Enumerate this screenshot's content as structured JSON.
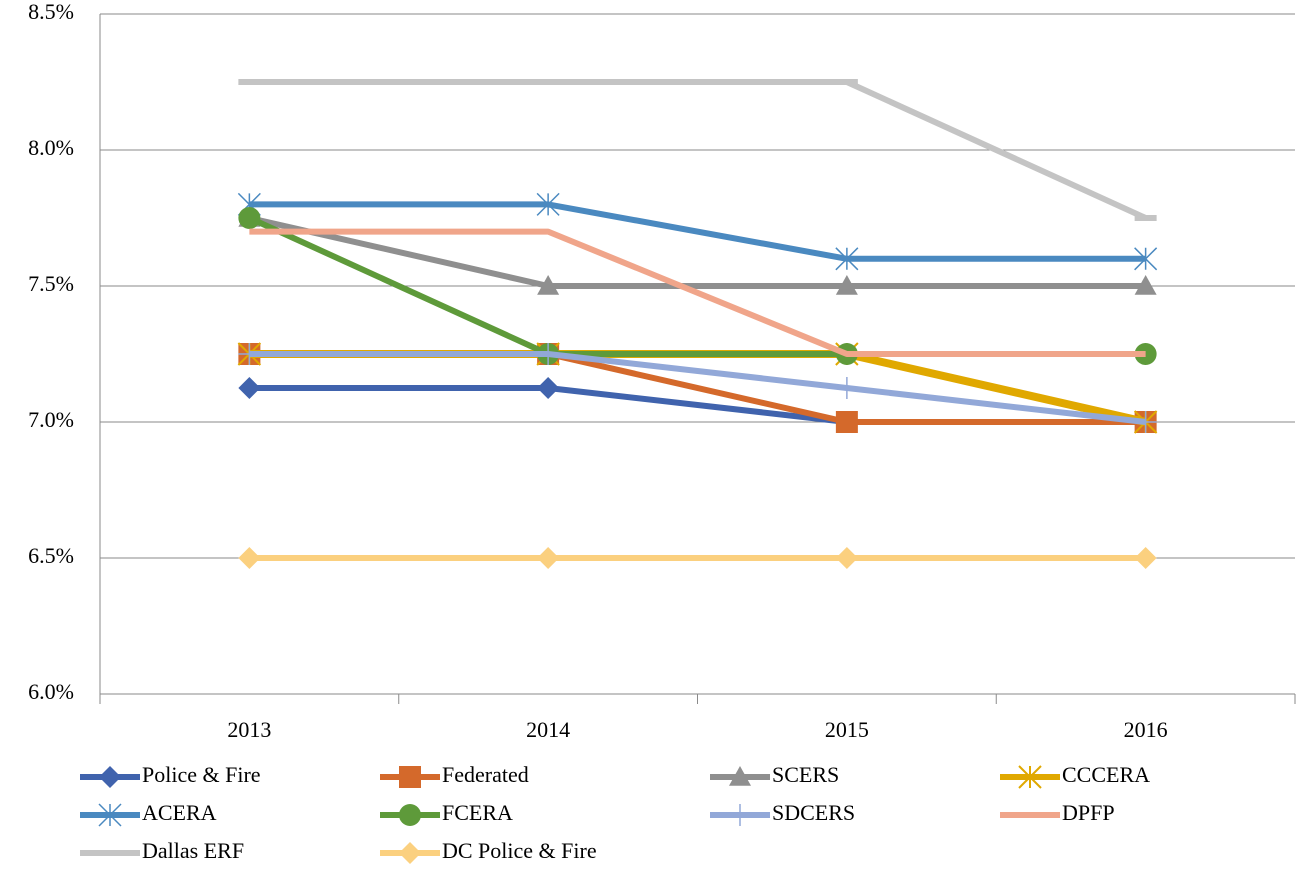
{
  "chart_data": {
    "type": "line",
    "categories": [
      "2013",
      "2014",
      "2015",
      "2016"
    ],
    "ylim": [
      6.0,
      8.5
    ],
    "yticks": [
      {
        "value": 6.0,
        "label": "6.0%"
      },
      {
        "value": 6.5,
        "label": "6.5%"
      },
      {
        "value": 7.0,
        "label": "7.0%"
      },
      {
        "value": 7.5,
        "label": "7.5%"
      },
      {
        "value": 8.0,
        "label": "8.0%"
      },
      {
        "value": 8.5,
        "label": "8.5%"
      }
    ],
    "grid": true,
    "legend": "bottom",
    "series": [
      {
        "name": "Police & Fire",
        "color": "#4063ad",
        "marker": "diamond",
        "values": [
          7.125,
          7.125,
          7.0,
          7.0
        ]
      },
      {
        "name": "Federated",
        "color": "#d4692b",
        "marker": "square",
        "values": [
          7.25,
          7.25,
          7.0,
          7.0
        ]
      },
      {
        "name": "SCERS",
        "color": "#8f8f8f",
        "marker": "triangle",
        "values": [
          7.75,
          7.5,
          7.5,
          7.5
        ]
      },
      {
        "name": "CCCERA",
        "color": "#e0a800",
        "marker": "star",
        "values": [
          7.25,
          7.25,
          7.25,
          7.0
        ]
      },
      {
        "name": "ACERA",
        "color": "#4a89c0",
        "marker": "asterisk",
        "values": [
          7.8,
          7.8,
          7.6,
          7.6
        ]
      },
      {
        "name": "FCERA",
        "color": "#5e9a3a",
        "marker": "circle",
        "values": [
          7.75,
          7.25,
          7.25,
          7.25
        ]
      },
      {
        "name": "SDCERS",
        "color": "#92a8d8",
        "marker": "plus",
        "values": [
          7.25,
          7.25,
          7.125,
          7.0
        ]
      },
      {
        "name": "DPFP",
        "color": "#f0a58a",
        "values": [
          7.7,
          7.7,
          7.25,
          7.25
        ]
      },
      {
        "name": "Dallas ERF",
        "color": "#c4c4c4",
        "marker": "dash",
        "values": [
          8.25,
          8.25,
          8.25,
          7.75
        ]
      },
      {
        "name": "DC Police & Fire",
        "color": "#fbd07f",
        "marker": "diamond",
        "values": [
          6.5,
          6.5,
          6.5,
          6.5
        ]
      }
    ]
  }
}
